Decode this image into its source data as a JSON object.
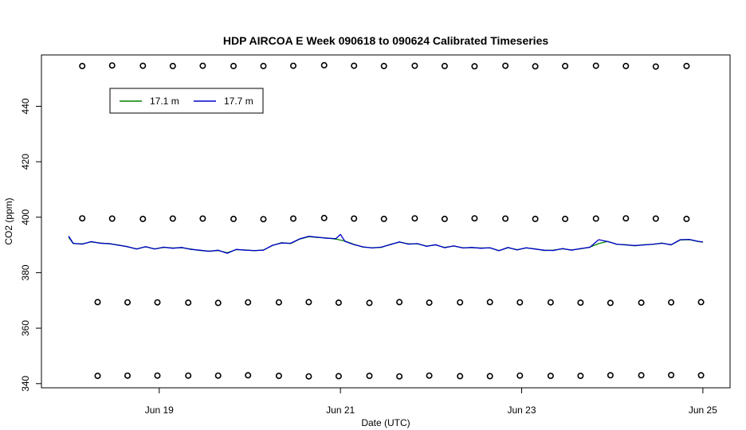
{
  "chart_data": {
    "type": "line",
    "title": "HDP AIRCOA E  Week 090618 to 090624  Calibrated Timeseries",
    "xlabel": "Date (UTC)",
    "ylabel": "CO2 (ppm)",
    "x_ticks": [
      {
        "day": 19,
        "label": "Jun 19"
      },
      {
        "day": 21,
        "label": "Jun 21"
      },
      {
        "day": 23,
        "label": "Jun 23"
      },
      {
        "day": 25,
        "label": "Jun 25"
      }
    ],
    "y_ticks": [
      340,
      360,
      380,
      400,
      420,
      440
    ],
    "xlim_day": [
      17.7,
      25.3
    ],
    "ylim": [
      338.5,
      458.5
    ],
    "legend": {
      "placement": "top-left",
      "entries": [
        {
          "name": "17.1 m",
          "color": "#008000"
        },
        {
          "name": "17.7 m",
          "color": "#0000cc"
        }
      ]
    },
    "series": [
      {
        "name": "17.1 m",
        "color": "#008000",
        "points": [
          [
            18.0,
            392.8
          ],
          [
            18.05,
            390.5
          ],
          [
            18.15,
            390.4
          ],
          [
            18.25,
            391.1
          ],
          [
            18.35,
            390.7
          ],
          [
            18.45,
            390.4
          ],
          [
            18.55,
            390.0
          ],
          [
            18.65,
            389.3
          ],
          [
            18.75,
            388.6
          ],
          [
            18.85,
            389.3
          ],
          [
            18.95,
            388.6
          ],
          [
            19.05,
            389.1
          ],
          [
            19.15,
            388.9
          ],
          [
            19.25,
            389.0
          ],
          [
            19.35,
            388.5
          ],
          [
            19.45,
            388.0
          ],
          [
            19.55,
            387.8
          ],
          [
            19.65,
            388.0
          ],
          [
            19.75,
            387.2
          ],
          [
            19.85,
            388.3
          ],
          [
            19.95,
            388.2
          ],
          [
            20.05,
            387.9
          ],
          [
            20.15,
            388.2
          ],
          [
            20.25,
            389.8
          ],
          [
            20.35,
            390.8
          ],
          [
            20.45,
            390.5
          ],
          [
            20.55,
            392.1
          ],
          [
            20.65,
            393.0
          ],
          [
            20.75,
            392.7
          ],
          [
            20.85,
            392.5
          ],
          [
            20.95,
            392.1
          ],
          [
            21.05,
            391.4
          ],
          [
            21.15,
            390.2
          ],
          [
            21.25,
            389.2
          ],
          [
            21.35,
            389.0
          ],
          [
            21.45,
            389.1
          ],
          [
            21.55,
            390.2
          ],
          [
            21.65,
            391.0
          ],
          [
            21.75,
            390.4
          ],
          [
            21.85,
            390.4
          ],
          [
            21.95,
            389.6
          ],
          [
            22.05,
            390.0
          ],
          [
            22.15,
            389.1
          ],
          [
            22.25,
            389.6
          ],
          [
            22.35,
            389.0
          ],
          [
            22.45,
            389.0
          ],
          [
            22.55,
            388.9
          ],
          [
            22.65,
            388.9
          ],
          [
            22.75,
            388.0
          ],
          [
            22.85,
            389.0
          ],
          [
            22.95,
            388.3
          ],
          [
            23.05,
            388.9
          ],
          [
            23.15,
            388.6
          ],
          [
            23.25,
            388.0
          ],
          [
            23.35,
            388.1
          ],
          [
            23.45,
            388.6
          ],
          [
            23.55,
            388.2
          ],
          [
            23.65,
            388.6
          ],
          [
            23.75,
            389.2
          ],
          [
            23.85,
            390.5
          ],
          [
            23.95,
            391.3
          ],
          [
            24.05,
            390.2
          ],
          [
            24.15,
            390.1
          ],
          [
            24.25,
            389.7
          ],
          [
            24.35,
            390.1
          ],
          [
            24.45,
            390.2
          ],
          [
            24.55,
            390.7
          ],
          [
            24.65,
            390.0
          ],
          [
            24.75,
            391.8
          ],
          [
            24.85,
            391.9
          ],
          [
            24.95,
            391.2
          ],
          [
            25.0,
            391.0
          ]
        ]
      },
      {
        "name": "17.7 m",
        "color": "#0000cc",
        "points": [
          [
            18.0,
            393.2
          ],
          [
            18.05,
            390.6
          ],
          [
            18.15,
            390.3
          ],
          [
            18.25,
            391.2
          ],
          [
            18.35,
            390.6
          ],
          [
            18.45,
            390.5
          ],
          [
            18.55,
            389.9
          ],
          [
            18.65,
            389.4
          ],
          [
            18.75,
            388.5
          ],
          [
            18.85,
            389.4
          ],
          [
            18.95,
            388.5
          ],
          [
            19.05,
            389.2
          ],
          [
            19.15,
            388.8
          ],
          [
            19.25,
            389.1
          ],
          [
            19.35,
            388.4
          ],
          [
            19.45,
            388.1
          ],
          [
            19.55,
            387.7
          ],
          [
            19.65,
            388.1
          ],
          [
            19.75,
            387.0
          ],
          [
            19.85,
            388.4
          ],
          [
            19.95,
            388.1
          ],
          [
            20.05,
            388.0
          ],
          [
            20.15,
            388.1
          ],
          [
            20.25,
            389.9
          ],
          [
            20.35,
            390.7
          ],
          [
            20.45,
            390.6
          ],
          [
            20.55,
            392.2
          ],
          [
            20.65,
            393.1
          ],
          [
            20.75,
            392.8
          ],
          [
            20.85,
            392.4
          ],
          [
            20.95,
            392.3
          ],
          [
            21.0,
            393.8
          ],
          [
            21.05,
            391.3
          ],
          [
            21.15,
            390.1
          ],
          [
            21.25,
            389.3
          ],
          [
            21.35,
            388.9
          ],
          [
            21.45,
            389.2
          ],
          [
            21.55,
            390.1
          ],
          [
            21.65,
            391.1
          ],
          [
            21.75,
            390.3
          ],
          [
            21.85,
            390.5
          ],
          [
            21.95,
            389.5
          ],
          [
            22.05,
            390.1
          ],
          [
            22.15,
            389.0
          ],
          [
            22.25,
            389.7
          ],
          [
            22.35,
            388.9
          ],
          [
            22.45,
            389.1
          ],
          [
            22.55,
            388.8
          ],
          [
            22.65,
            389.0
          ],
          [
            22.75,
            387.9
          ],
          [
            22.85,
            389.1
          ],
          [
            22.95,
            388.2
          ],
          [
            23.05,
            389.0
          ],
          [
            23.15,
            388.5
          ],
          [
            23.25,
            388.1
          ],
          [
            23.35,
            388.0
          ],
          [
            23.45,
            388.7
          ],
          [
            23.55,
            388.1
          ],
          [
            23.65,
            388.7
          ],
          [
            23.75,
            389.1
          ],
          [
            23.85,
            391.9
          ],
          [
            23.95,
            391.2
          ],
          [
            24.05,
            390.3
          ],
          [
            24.15,
            390.0
          ],
          [
            24.25,
            389.8
          ],
          [
            24.35,
            390.0
          ],
          [
            24.45,
            390.3
          ],
          [
            24.55,
            390.6
          ],
          [
            24.65,
            390.1
          ],
          [
            24.75,
            391.9
          ],
          [
            24.85,
            392.0
          ],
          [
            24.95,
            391.3
          ],
          [
            25.0,
            391.1
          ]
        ]
      }
    ],
    "markers": [
      {
        "name": "~455 ppm reference",
        "values": [
          [
            18.15,
            454.5
          ],
          [
            18.48,
            454.7
          ],
          [
            18.82,
            454.6
          ],
          [
            19.15,
            454.5
          ],
          [
            19.48,
            454.6
          ],
          [
            19.82,
            454.5
          ],
          [
            20.15,
            454.5
          ],
          [
            20.48,
            454.6
          ],
          [
            20.82,
            454.8
          ],
          [
            21.15,
            454.6
          ],
          [
            21.48,
            454.5
          ],
          [
            21.82,
            454.6
          ],
          [
            22.15,
            454.5
          ],
          [
            22.48,
            454.4
          ],
          [
            22.82,
            454.6
          ],
          [
            23.15,
            454.4
          ],
          [
            23.48,
            454.5
          ],
          [
            23.82,
            454.6
          ],
          [
            24.15,
            454.5
          ],
          [
            24.48,
            454.3
          ],
          [
            24.82,
            454.5
          ]
        ]
      },
      {
        "name": "~400 ppm reference",
        "values": [
          [
            18.15,
            399.6
          ],
          [
            18.48,
            399.5
          ],
          [
            18.82,
            399.4
          ],
          [
            19.15,
            399.5
          ],
          [
            19.48,
            399.5
          ],
          [
            19.82,
            399.4
          ],
          [
            20.15,
            399.3
          ],
          [
            20.48,
            399.5
          ],
          [
            20.82,
            399.7
          ],
          [
            21.15,
            399.5
          ],
          [
            21.48,
            399.4
          ],
          [
            21.82,
            399.6
          ],
          [
            22.15,
            399.4
          ],
          [
            22.48,
            399.6
          ],
          [
            22.82,
            399.5
          ],
          [
            23.15,
            399.4
          ],
          [
            23.48,
            399.4
          ],
          [
            23.82,
            399.5
          ],
          [
            24.15,
            399.6
          ],
          [
            24.48,
            399.5
          ],
          [
            24.82,
            399.4
          ]
        ]
      },
      {
        "name": "~369 ppm reference",
        "values": [
          [
            18.32,
            369.4
          ],
          [
            18.65,
            369.3
          ],
          [
            18.98,
            369.3
          ],
          [
            19.32,
            369.2
          ],
          [
            19.65,
            369.1
          ],
          [
            19.98,
            369.3
          ],
          [
            20.32,
            369.3
          ],
          [
            20.65,
            369.4
          ],
          [
            20.98,
            369.2
          ],
          [
            21.32,
            369.1
          ],
          [
            21.65,
            369.4
          ],
          [
            21.98,
            369.2
          ],
          [
            22.32,
            369.3
          ],
          [
            22.65,
            369.4
          ],
          [
            22.98,
            369.3
          ],
          [
            23.32,
            369.3
          ],
          [
            23.65,
            369.2
          ],
          [
            23.98,
            369.1
          ],
          [
            24.32,
            369.2
          ],
          [
            24.65,
            369.3
          ],
          [
            24.98,
            369.4
          ]
        ]
      },
      {
        "name": "~343 ppm reference",
        "values": [
          [
            18.32,
            342.8
          ],
          [
            18.65,
            342.9
          ],
          [
            18.98,
            342.9
          ],
          [
            19.32,
            342.9
          ],
          [
            19.65,
            342.9
          ],
          [
            19.98,
            343.0
          ],
          [
            20.32,
            342.8
          ],
          [
            20.65,
            342.6
          ],
          [
            20.98,
            342.7
          ],
          [
            21.32,
            342.8
          ],
          [
            21.65,
            342.6
          ],
          [
            21.98,
            342.9
          ],
          [
            22.32,
            342.7
          ],
          [
            22.65,
            342.7
          ],
          [
            22.98,
            342.9
          ],
          [
            23.32,
            342.8
          ],
          [
            23.65,
            342.8
          ],
          [
            23.98,
            343.0
          ],
          [
            24.32,
            343.0
          ],
          [
            24.65,
            343.1
          ],
          [
            24.98,
            343.0
          ]
        ]
      }
    ]
  }
}
